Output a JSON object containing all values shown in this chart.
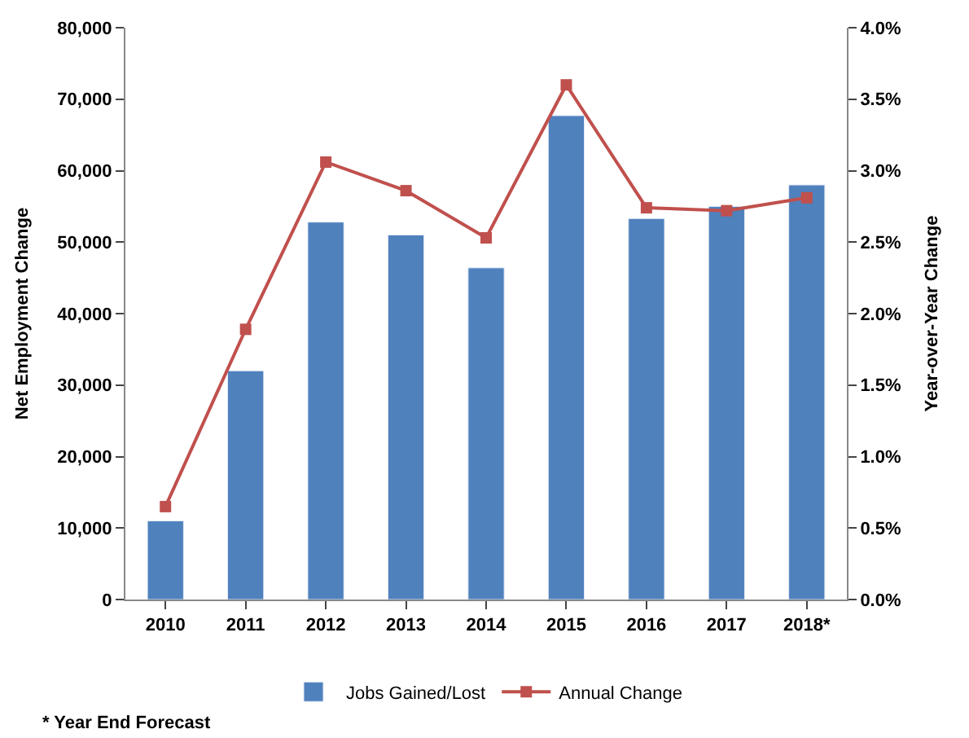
{
  "chart_data": {
    "type": "bar",
    "categories": [
      "2010",
      "2011",
      "2012",
      "2013",
      "2014",
      "2015",
      "2016",
      "2017",
      "2018*"
    ],
    "ylabel": "Net Employment Change",
    "y2label": "Year-over-Year Change",
    "series": [
      {
        "name": "Jobs Gained/Lost",
        "color": "#4f81bd",
        "values": [
          11000,
          32000,
          52800,
          51000,
          46400,
          67700,
          53300,
          55000,
          58000
        ]
      },
      {
        "name": "Annual Change",
        "type": "line",
        "axis": "y2",
        "color": "#c0504d",
        "marker": "square",
        "values": [
          0.65,
          1.89,
          3.06,
          2.86,
          2.53,
          3.6,
          2.74,
          2.72,
          2.81
        ]
      }
    ],
    "ylim": [
      0,
      80000
    ],
    "yticks": [
      {
        "value": 0,
        "label": "0"
      },
      {
        "value": 10000,
        "label": "10,000"
      },
      {
        "value": 20000,
        "label": "20,000"
      },
      {
        "value": 30000,
        "label": "30,000"
      },
      {
        "value": 40000,
        "label": "40,000"
      },
      {
        "value": 50000,
        "label": "50,000"
      },
      {
        "value": 60000,
        "label": "60,000"
      },
      {
        "value": 70000,
        "label": "70,000"
      },
      {
        "value": 80000,
        "label": "80,000"
      }
    ],
    "y2lim": [
      0,
      4
    ],
    "y2ticks": [
      {
        "value": 0,
        "label": "0.0%"
      },
      {
        "value": 0.5,
        "label": "0.5%"
      },
      {
        "value": 1,
        "label": "1.0%"
      },
      {
        "value": 1.5,
        "label": "1.5%"
      },
      {
        "value": 2,
        "label": "2.0%"
      },
      {
        "value": 2.5,
        "label": "2.5%"
      },
      {
        "value": 3,
        "label": "3.0%"
      },
      {
        "value": 3.5,
        "label": "3.5%"
      },
      {
        "value": 4,
        "label": "4.0%"
      }
    ],
    "legend": "bottom",
    "annotations": [
      "* Year End Forecast"
    ]
  }
}
